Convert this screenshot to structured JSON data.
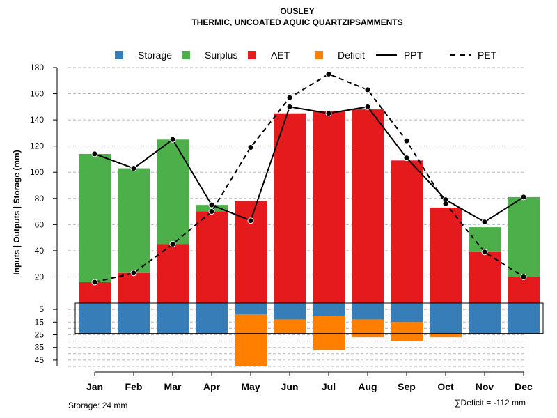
{
  "chart_data": {
    "type": "bar",
    "title": "OUSLEY",
    "subtitle": "THERMIC, UNCOATED AQUIC QUARTZIPSAMMENTS",
    "ylabel": "Inputs | Outputs | Storage    (mm)",
    "categories": [
      "Jan",
      "Feb",
      "Mar",
      "Apr",
      "May",
      "Jun",
      "Jul",
      "Aug",
      "Sep",
      "Oct",
      "Nov",
      "Dec"
    ],
    "ylim_upper": [
      0,
      180
    ],
    "upper_ticks": [
      "20",
      "40",
      "60",
      "80",
      "100",
      "120",
      "140",
      "160",
      "180"
    ],
    "ylim_lower": [
      0,
      50
    ],
    "lower_ticks": [
      "5",
      "15",
      "25",
      "35",
      "45"
    ],
    "series": [
      {
        "name": "Storage",
        "color": "#377EB8",
        "values": [
          24,
          24,
          24,
          24,
          9,
          13,
          10,
          13,
          15,
          24,
          24,
          24
        ]
      },
      {
        "name": "Surplus",
        "color": "#4DAF4A",
        "values": [
          98,
          80,
          80,
          5,
          0,
          0,
          0,
          0,
          0,
          0,
          19,
          61
        ]
      },
      {
        "name": "AET",
        "color": "#E41A1C",
        "values": [
          16,
          23,
          45,
          70,
          78,
          145,
          147,
          148,
          109,
          73,
          39,
          20
        ]
      },
      {
        "name": "Deficit",
        "color": "#FF7F00",
        "values": [
          0,
          0,
          0,
          0,
          41,
          11,
          27,
          14,
          15,
          3,
          0,
          0
        ]
      },
      {
        "name": "PPT",
        "style": "solid",
        "values": [
          114,
          103,
          125,
          75,
          63,
          150,
          145,
          150,
          111,
          79,
          62,
          81
        ]
      },
      {
        "name": "PET",
        "style": "dashed",
        "values": [
          16,
          23,
          45,
          70,
          119,
          157,
          175,
          163,
          124,
          76,
          39,
          20
        ]
      }
    ],
    "legend": [
      "Storage",
      "Surplus",
      "AET",
      "Deficit",
      "PPT",
      "PET"
    ],
    "legend_position": "top",
    "grid": true
  },
  "footer": {
    "storage_note": "Storage: 24 mm",
    "deficit_note": "∑Deficit = -112 mm"
  }
}
